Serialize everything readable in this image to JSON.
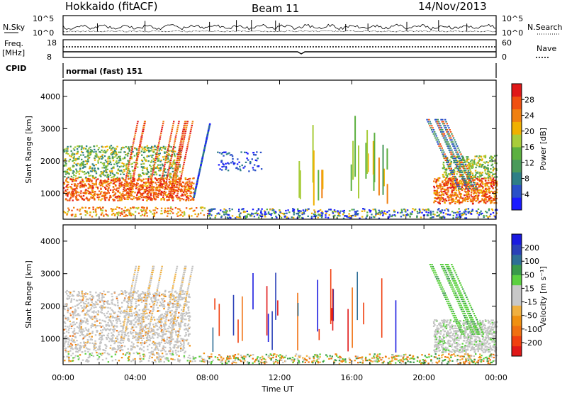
{
  "header": {
    "station": "Hokkaido (fitACF)",
    "beam": "Beam 11",
    "date": "14/Nov/2013"
  },
  "noise_panel": {
    "left_label": "N.Sky",
    "right_label": "N.Search",
    "right_ticks": [
      "10^5",
      "10^0"
    ],
    "left_ticks": [
      "10^5",
      "10^0"
    ]
  },
  "freq_panel": {
    "left_label_top": "Freq.",
    "left_label_unit": "[MHz]",
    "left_ticks": [
      "18",
      "8"
    ],
    "right_label": "Nave",
    "right_ticks": [
      "60",
      "0"
    ]
  },
  "cpid": {
    "label": "CPID",
    "value": "normal (fast) 151"
  },
  "colors": {
    "power_scale": [
      "#1a1aff",
      "#2a50c8",
      "#2e7f86",
      "#4a9a5a",
      "#5cb040",
      "#a8cc3a",
      "#f0b000",
      "#f08010",
      "#f05010",
      "#e01818"
    ],
    "velocity_scale": [
      "#e01818",
      "#f04010",
      "#f07010",
      "#f09010",
      "#f0b040",
      "#c8c8c8",
      "#c8c8c8",
      "#5cd040",
      "#3a9a4a",
      "#2e6f96",
      "#2a40b8",
      "#1a1ae0"
    ],
    "gray_scatter": "#c4c4c4"
  },
  "chart_data": [
    {
      "type": "heatmap",
      "name": "power",
      "xlabel": "",
      "ylabel": "Slant Range [km]",
      "y_ticks": [
        "1000",
        "2000",
        "3000",
        "4000"
      ],
      "ylim": [
        200,
        4500
      ],
      "colorbar_label": "Power [dB]",
      "colorbar_ticks": [
        "4",
        "8",
        "12",
        "16",
        "20",
        "24",
        "28"
      ]
    },
    {
      "type": "heatmap",
      "name": "velocity",
      "xlabel": "Time UT",
      "ylabel": "Slant Range [km]",
      "y_ticks": [
        "1000",
        "2000",
        "3000",
        "4000"
      ],
      "ylim": [
        200,
        4500
      ],
      "colorbar_label": "Velocity [m s⁻¹]",
      "colorbar_ticks": [
        "-200",
        "-100",
        "-50",
        "-15",
        "15",
        "50",
        "100",
        "200"
      ]
    }
  ],
  "x_axis": {
    "label": "Time UT",
    "ticks": [
      "00:00",
      "04:00",
      "08:00",
      "12:00",
      "16:00",
      "20:00",
      "00:00"
    ]
  }
}
